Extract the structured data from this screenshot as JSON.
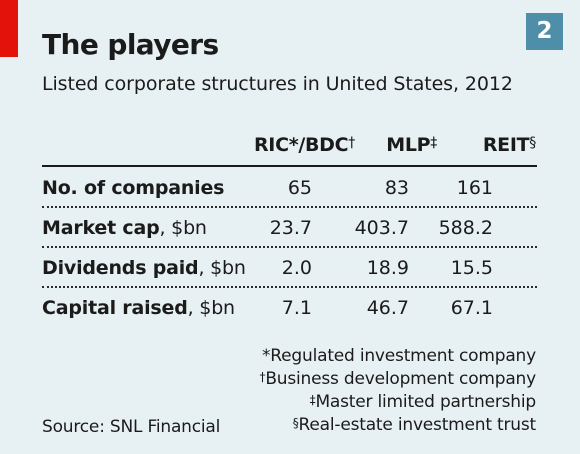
{
  "badge": "2",
  "chart_data": {
    "type": "table",
    "title": "The players",
    "subtitle": "Listed corporate structures in United States, 2012",
    "columns": [
      {
        "label": "RIC*/BDC",
        "mark": "†"
      },
      {
        "label": "MLP",
        "mark": "‡"
      },
      {
        "label": "REIT",
        "mark": "§"
      }
    ],
    "rows": [
      {
        "label": "No. of companies",
        "unit": "",
        "values": [
          "65",
          "83",
          "161"
        ]
      },
      {
        "label": "Market cap",
        "unit": ", $bn",
        "values": [
          "23.7",
          "403.7",
          "588.2"
        ]
      },
      {
        "label": "Dividends paid",
        "unit": ", $bn",
        "values": [
          "2.0",
          "18.9",
          "15.5"
        ]
      },
      {
        "label": "Capital raised",
        "unit": ", $bn",
        "values": [
          "7.1",
          "46.7",
          "67.1"
        ]
      }
    ],
    "footnotes": [
      {
        "mark": "",
        "text": "*Regulated investment company"
      },
      {
        "mark": "†",
        "text": "Business development company"
      },
      {
        "mark": "‡",
        "text": "Master limited partnership"
      },
      {
        "mark": "§",
        "text": "Real-estate investment trust"
      }
    ],
    "source": "Source: SNL Financial"
  }
}
